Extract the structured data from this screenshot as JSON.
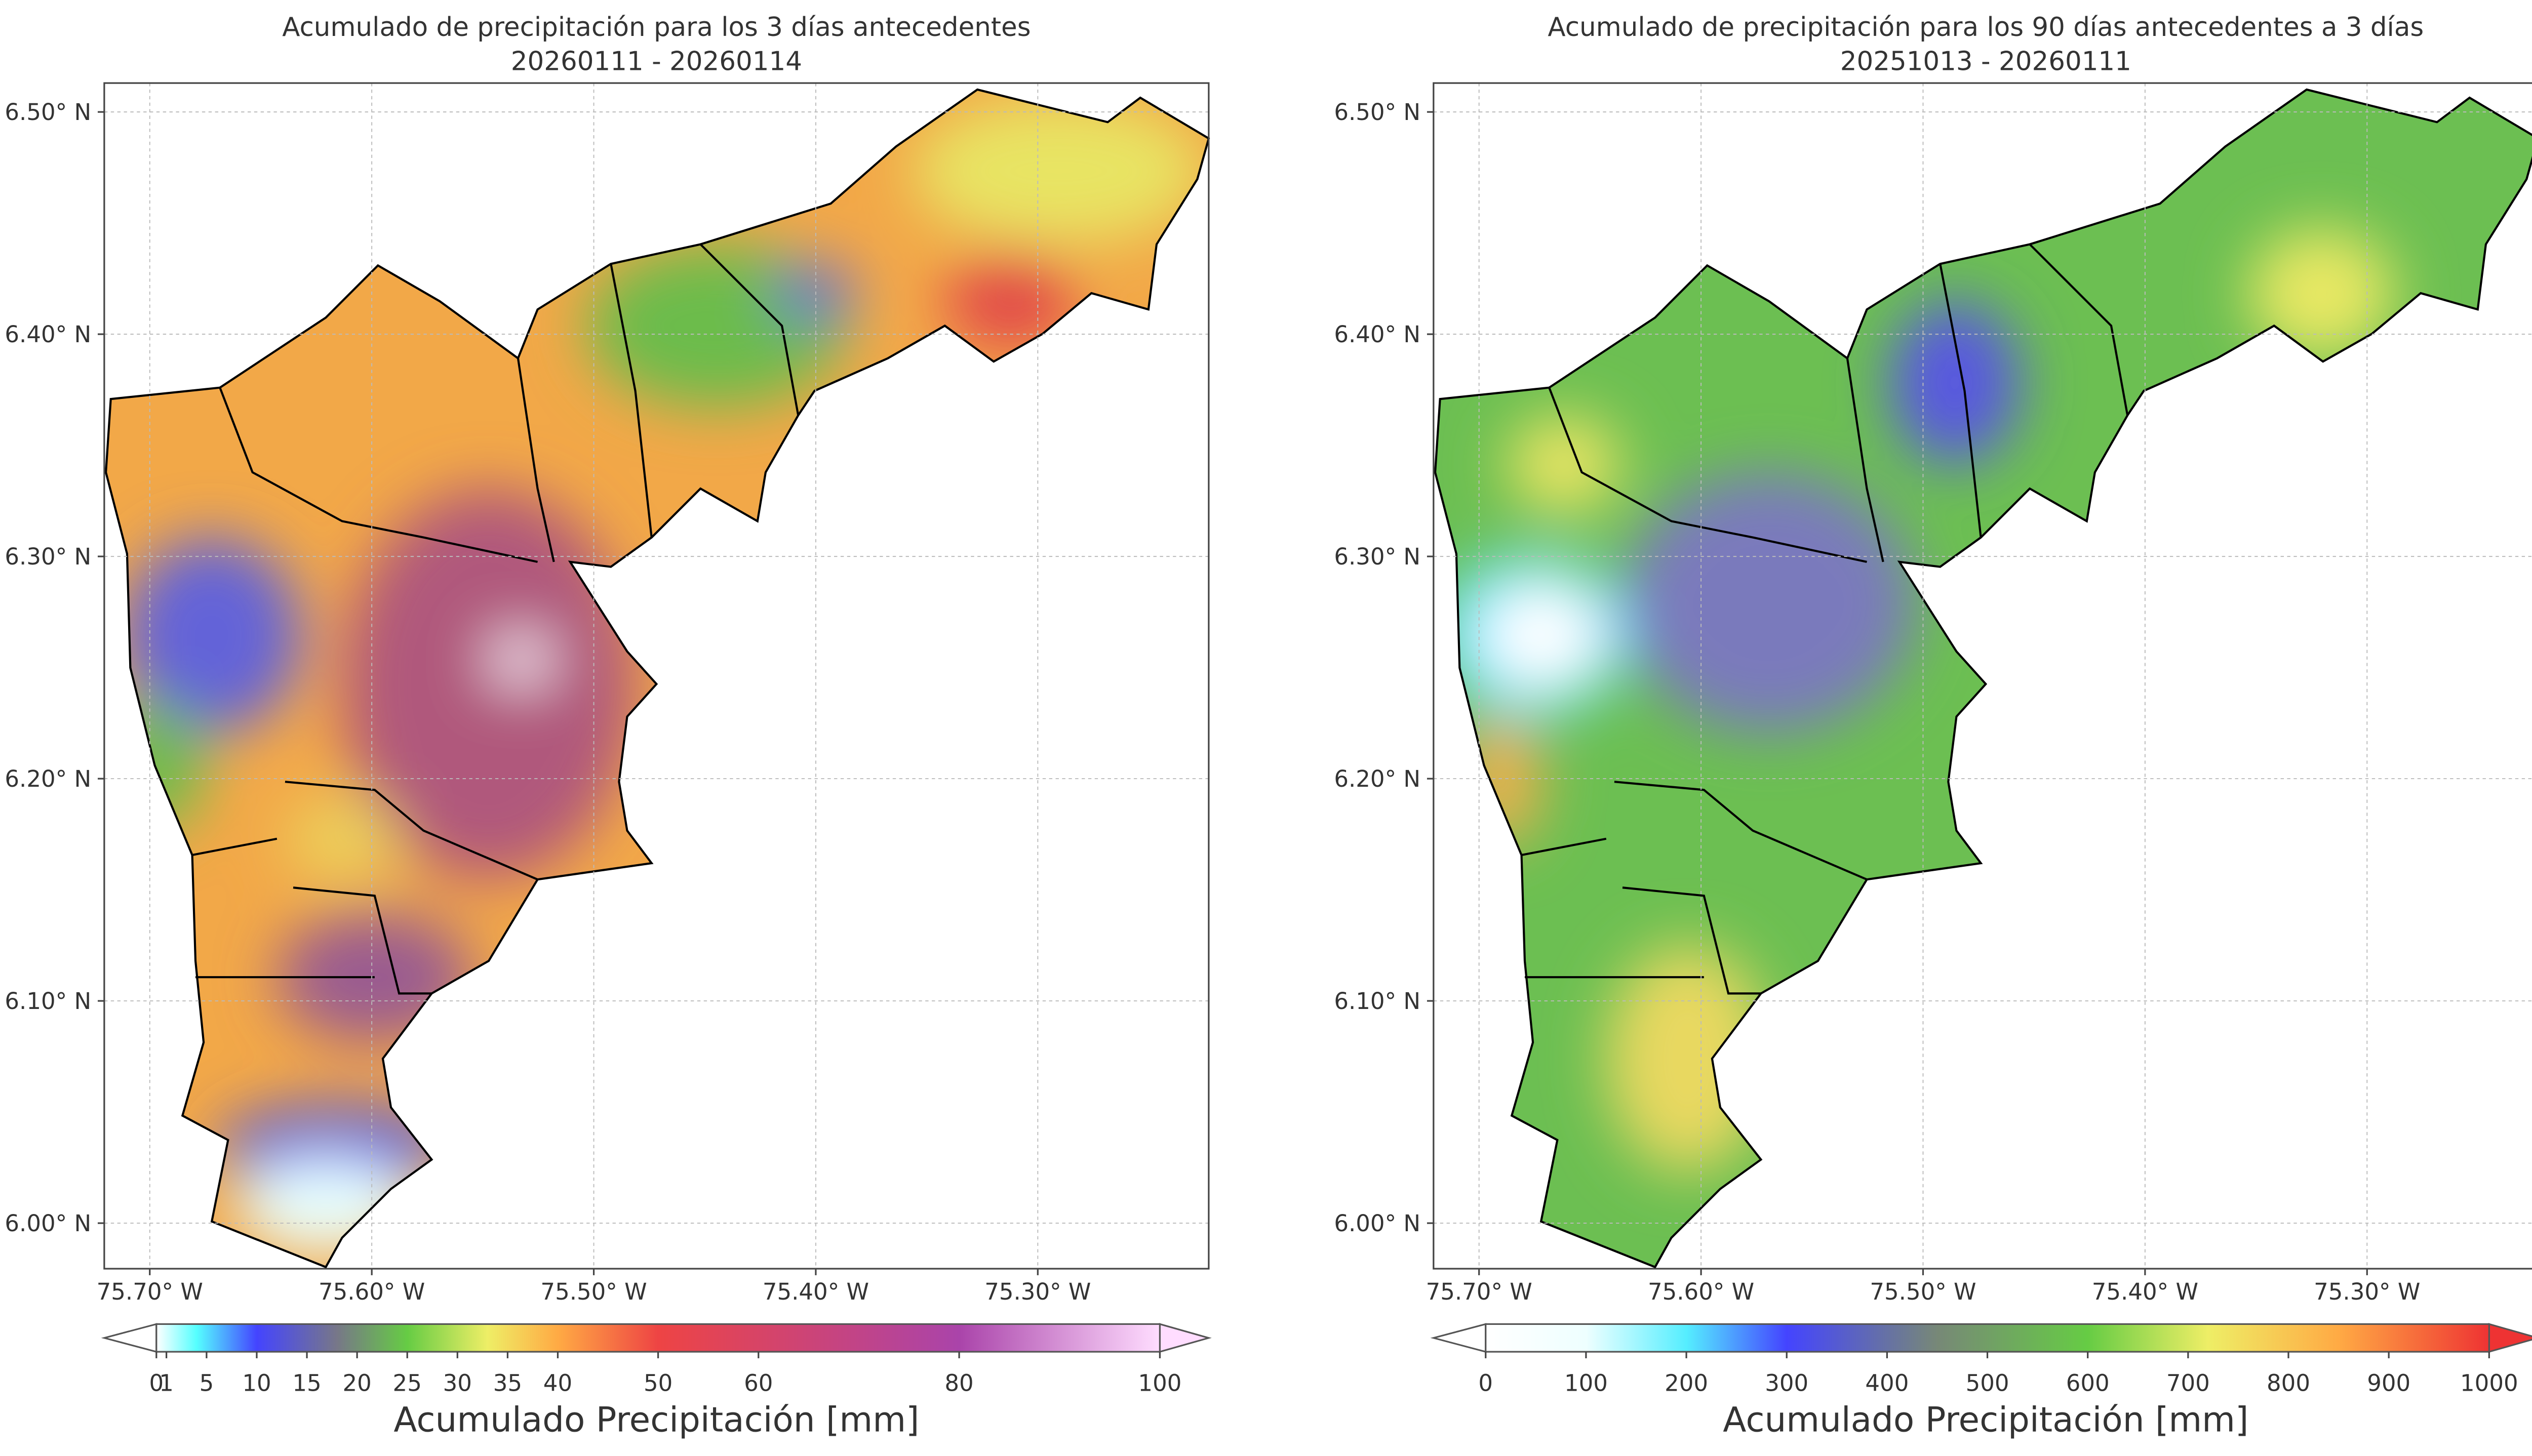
{
  "panels": [
    {
      "title": "Acumulado de precipitación para los 3 días antecedentes",
      "subtitle": "20260111 - 20260114",
      "xlim": [
        -75.7205,
        -75.223
      ],
      "ylim": [
        5.9795,
        6.513
      ],
      "xticks": [
        {
          "value": -75.7,
          "label": "75.70° W"
        },
        {
          "value": -75.6,
          "label": "75.60° W"
        },
        {
          "value": -75.5,
          "label": "75.50° W"
        },
        {
          "value": -75.4,
          "label": "75.40° W"
        },
        {
          "value": -75.3,
          "label": "75.30° W"
        }
      ],
      "yticks": [
        {
          "value": 6.0,
          "label": "6.00° N"
        },
        {
          "value": 6.1,
          "label": "6.10° N"
        },
        {
          "value": 6.2,
          "label": "6.20° N"
        },
        {
          "value": 6.3,
          "label": "6.30° N"
        },
        {
          "value": 6.4,
          "label": "6.40° N"
        },
        {
          "value": 6.5,
          "label": "6.50° N"
        }
      ],
      "colorbar": {
        "label": "Acumulado Precipitación [mm]",
        "lim": [
          0,
          100
        ],
        "ticks": [
          0,
          1,
          5,
          10,
          15,
          20,
          25,
          30,
          35,
          40,
          50,
          60,
          80,
          100
        ]
      }
    },
    {
      "title": "Acumulado de precipitación para los 90 días antecedentes a 3 días",
      "subtitle": "20251013 - 20260111",
      "xlim": [
        -75.7205,
        -75.223
      ],
      "ylim": [
        5.9795,
        6.513
      ],
      "xticks": [
        {
          "value": -75.7,
          "label": "75.70° W"
        },
        {
          "value": -75.6,
          "label": "75.60° W"
        },
        {
          "value": -75.5,
          "label": "75.50° W"
        },
        {
          "value": -75.4,
          "label": "75.40° W"
        },
        {
          "value": -75.3,
          "label": "75.30° W"
        }
      ],
      "yticks": [
        {
          "value": 6.0,
          "label": "6.00° N"
        },
        {
          "value": 6.1,
          "label": "6.10° N"
        },
        {
          "value": 6.2,
          "label": "6.20° N"
        },
        {
          "value": 6.3,
          "label": "6.30° N"
        },
        {
          "value": 6.4,
          "label": "6.40° N"
        },
        {
          "value": 6.5,
          "label": "6.50° N"
        }
      ],
      "colorbar": {
        "label": "Acumulado Precipitación [mm]",
        "lim": [
          0,
          1000
        ],
        "ticks": [
          0,
          100,
          200,
          300,
          400,
          500,
          600,
          700,
          800,
          900,
          1000
        ]
      }
    }
  ]
}
